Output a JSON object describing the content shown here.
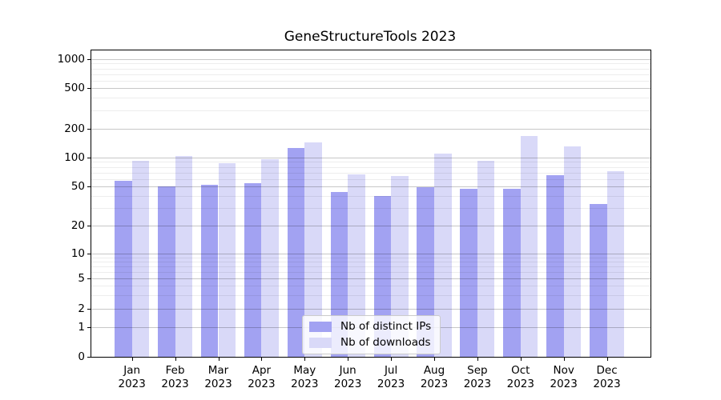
{
  "title": "GeneStructureTools 2023",
  "chart_data": {
    "type": "bar",
    "title": "GeneStructureTools 2023",
    "categories": [
      "Jan 2023",
      "Feb 2023",
      "Mar 2023",
      "Apr 2023",
      "May 2023",
      "Jun 2023",
      "Jul 2023",
      "Aug 2023",
      "Sep 2023",
      "Oct 2023",
      "Nov 2023",
      "Dec 2023"
    ],
    "months": [
      "Jan",
      "Feb",
      "Mar",
      "Apr",
      "May",
      "Jun",
      "Jul",
      "Aug",
      "Sep",
      "Oct",
      "Nov",
      "Dec"
    ],
    "year": "2023",
    "series": [
      {
        "name": "Nb of distinct IPs",
        "color": "#a2a2f2",
        "values": [
          57,
          50,
          52,
          54,
          127,
          44,
          40,
          49,
          47,
          47,
          66,
          33
        ]
      },
      {
        "name": "Nb of downloads",
        "color": "#d9d9f8",
        "values": [
          92,
          103,
          87,
          96,
          144,
          67,
          64,
          111,
          93,
          167,
          131,
          72
        ]
      }
    ],
    "xlabel": "",
    "ylabel": "",
    "yscale": "symlog",
    "ylim": [
      0,
      1000
    ],
    "yticks": [
      0,
      1,
      2,
      5,
      10,
      20,
      50,
      100,
      200,
      500,
      1000
    ],
    "yticks_minor": [
      3,
      4,
      6,
      7,
      8,
      9,
      30,
      40,
      60,
      70,
      80,
      90,
      300,
      400,
      600,
      700,
      800,
      900
    ],
    "grid": "both",
    "grid_on_top": true,
    "legend_position": "lower center"
  },
  "colors": {
    "bar_distinct_ips": "#a2a2f2",
    "bar_downloads": "#d9d9f8",
    "axis": "#000000",
    "grid_major": "#c6c6c6",
    "grid_minor": "#ededed",
    "background": "#ffffff"
  }
}
